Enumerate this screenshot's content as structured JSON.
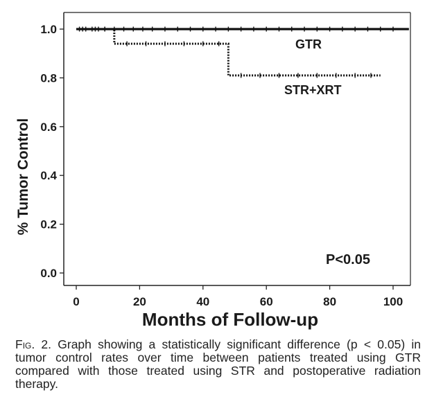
{
  "chart_data": {
    "type": "line",
    "xlabel": "Months of Follow-up",
    "ylabel": "% Tumor Control",
    "xlim": [
      0,
      105
    ],
    "ylim": [
      0,
      1.0
    ],
    "xticks": [
      0,
      20,
      40,
      60,
      80,
      100
    ],
    "xtick_labels": [
      "0",
      "20",
      "40",
      "60",
      "80",
      "100"
    ],
    "yticks": [
      0.0,
      0.2,
      0.4,
      0.6,
      0.8,
      1.0
    ],
    "ytick_labels": [
      "0.0",
      "0.2",
      "0.4",
      "0.6",
      "0.8",
      "1.0"
    ],
    "grid": false,
    "series": [
      {
        "name": "GTR",
        "style": "solid",
        "color": "#111111",
        "x": [
          0,
          105
        ],
        "y": [
          1.0,
          1.0
        ],
        "censor_x": [
          1,
          3,
          5,
          7,
          9,
          12,
          15,
          18,
          21,
          24,
          28,
          32,
          36,
          40,
          44,
          48,
          52,
          56,
          60,
          64,
          68,
          72,
          76,
          80,
          84,
          88,
          92,
          96,
          100
        ]
      },
      {
        "name": "STR+XRT",
        "style": "dotted",
        "color": "#111111",
        "x": [
          0,
          12,
          12,
          48,
          48,
          96
        ],
        "y": [
          1.0,
          1.0,
          0.94,
          0.94,
          0.81,
          0.81
        ],
        "censor_x": [
          2,
          6,
          9,
          16,
          22,
          28,
          34,
          40,
          45,
          52,
          58,
          64,
          70,
          76,
          82,
          88,
          93
        ]
      }
    ],
    "annotations": [
      "P<0.05"
    ]
  },
  "caption": {
    "fig_label": "Fig. 2.",
    "text": "Graph showing a statistically significant difference (p < 0.05) in tumor control rates over time between patients treated using GTR compared with those treated using STR and postoperative radiation therapy."
  }
}
